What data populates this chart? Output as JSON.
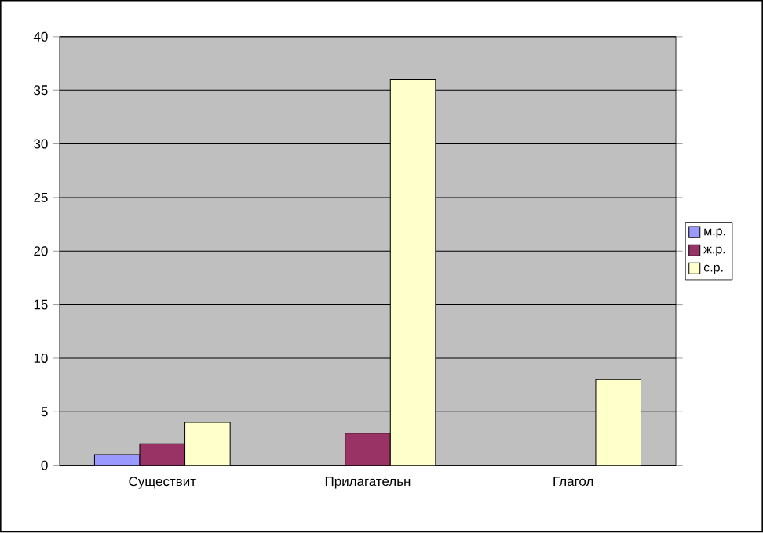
{
  "chart_data": {
    "type": "bar",
    "categories": [
      "Существит",
      "Прилагательн",
      "Глагол"
    ],
    "series": [
      {
        "name": "м.р.",
        "color": "#9999ff",
        "values": [
          1,
          null,
          null
        ]
      },
      {
        "name": "ж.р.",
        "color": "#993366",
        "values": [
          2,
          3,
          null
        ]
      },
      {
        "name": "с.р.",
        "color": "#ffffcc",
        "values": [
          4,
          36,
          8
        ]
      }
    ],
    "ylim": [
      0,
      40
    ],
    "yticks": [
      0,
      5,
      10,
      15,
      20,
      25,
      30,
      35,
      40
    ],
    "grid": "y",
    "legend": "right"
  }
}
